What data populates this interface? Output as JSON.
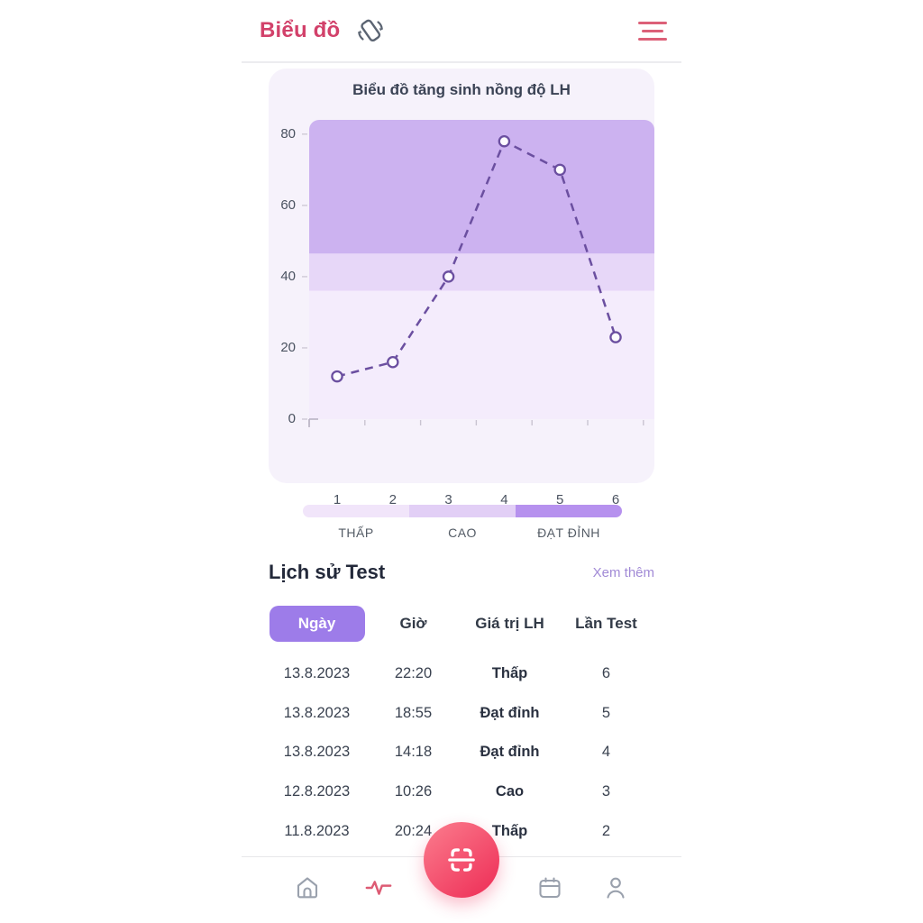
{
  "header": {
    "title": "Biểu đồ",
    "rotate_icon": "rotate-device-icon",
    "menu_icon": "hamburger-menu-icon"
  },
  "chart_data": {
    "type": "line",
    "title": "Biểu đồ tăng sinh nồng độ LH",
    "x": [
      1,
      2,
      3,
      4,
      5,
      6
    ],
    "values": [
      12,
      16,
      40,
      78,
      70,
      23
    ],
    "xlabel": "",
    "ylabel": "",
    "ylim": [
      0,
      84
    ],
    "yticks": [
      0,
      20,
      40,
      60,
      80
    ],
    "line_style": "dashed",
    "line_color": "#6b4fa0",
    "marker": "open-circle",
    "grid": false,
    "bands": [
      {
        "label": "THẤP",
        "from": 0,
        "to": 36,
        "color": "#f4ecfc"
      },
      {
        "label": "CAO",
        "from": 36,
        "to": 46.5,
        "color": "#e7d7f8"
      },
      {
        "label": "ĐẠT ĐỈNH",
        "from": 46.5,
        "to": 84,
        "color": "#ccb2f0"
      }
    ]
  },
  "legend": {
    "items": [
      {
        "label": "THẤP",
        "color": "#f1e5fa"
      },
      {
        "label": "CAO",
        "color": "#e2cff6"
      },
      {
        "label": "ĐẠT ĐỈNH",
        "color": "#b691ee"
      }
    ]
  },
  "history": {
    "title": "Lịch sử Test",
    "link": "Xem thêm",
    "columns": [
      "Ngày",
      "Giờ",
      "Giá trị LH",
      "Lần Test"
    ],
    "rows": [
      {
        "date": "13.8.2023",
        "time": "22:20",
        "value": "Thấp",
        "count": "6"
      },
      {
        "date": "13.8.2023",
        "time": "18:55",
        "value": "Đạt đỉnh",
        "count": "5"
      },
      {
        "date": "13.8.2023",
        "time": "14:18",
        "value": "Đạt đỉnh",
        "count": "4"
      },
      {
        "date": "12.8.2023",
        "time": "10:26",
        "value": "Cao",
        "count": "3"
      },
      {
        "date": "11.8.2023",
        "time": "20:24",
        "value": "Thấp",
        "count": "2"
      }
    ]
  },
  "colors": {
    "accent_pink": "#d2416a",
    "accent_purple": "#9d7ce9",
    "card_bg": "#f6f2fb",
    "nav_gray": "#9aa1ad",
    "nav_active": "#dd5b74"
  }
}
